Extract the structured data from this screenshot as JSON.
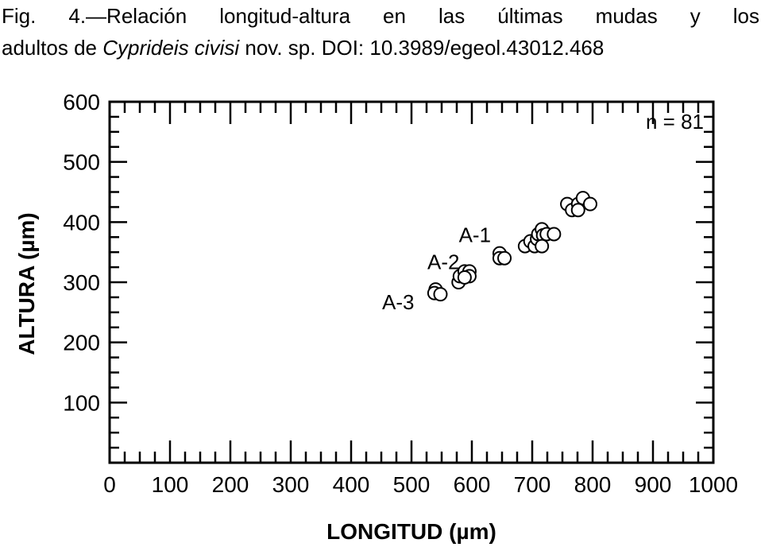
{
  "caption": {
    "line1": "Fig. 4.—Relación longitud-altura en las últimas mudas y los",
    "line2_prefix": "adultos de ",
    "line2_species": "Cyprideis civisi",
    "line2_suffix": " nov. sp. DOI: 10.3989/egeol.43012.468"
  },
  "chart_data": {
    "type": "scatter",
    "title": "",
    "xlabel": "LONGITUD (µm)",
    "ylabel": "ALTURA (µm)",
    "xlim": [
      0,
      1000
    ],
    "ylim": [
      0,
      600
    ],
    "x_ticks": [
      "0",
      "100",
      "200",
      "300",
      "400",
      "500",
      "600",
      "700",
      "800",
      "900",
      "1000"
    ],
    "y_ticks": [
      "100",
      "200",
      "300",
      "400",
      "500",
      "600"
    ],
    "grid": false,
    "marker": "open-circle",
    "annotation": "n = 81",
    "group_labels": [
      {
        "text": "A-1",
        "x": 605,
        "y": 380
      },
      {
        "text": "A-2",
        "x": 553,
        "y": 335
      },
      {
        "text": "A-3",
        "x": 478,
        "y": 268
      }
    ],
    "points": [
      {
        "x": 540,
        "y": 288
      },
      {
        "x": 538,
        "y": 282
      },
      {
        "x": 548,
        "y": 280
      },
      {
        "x": 578,
        "y": 300
      },
      {
        "x": 580,
        "y": 310
      },
      {
        "x": 588,
        "y": 318
      },
      {
        "x": 596,
        "y": 318
      },
      {
        "x": 596,
        "y": 310
      },
      {
        "x": 588,
        "y": 308
      },
      {
        "x": 646,
        "y": 348
      },
      {
        "x": 646,
        "y": 340
      },
      {
        "x": 654,
        "y": 340
      },
      {
        "x": 688,
        "y": 360
      },
      {
        "x": 697,
        "y": 368
      },
      {
        "x": 704,
        "y": 360
      },
      {
        "x": 708,
        "y": 372
      },
      {
        "x": 710,
        "y": 380
      },
      {
        "x": 716,
        "y": 388
      },
      {
        "x": 718,
        "y": 378
      },
      {
        "x": 716,
        "y": 360
      },
      {
        "x": 724,
        "y": 380
      },
      {
        "x": 736,
        "y": 380
      },
      {
        "x": 758,
        "y": 430
      },
      {
        "x": 766,
        "y": 420
      },
      {
        "x": 776,
        "y": 430
      },
      {
        "x": 776,
        "y": 420
      },
      {
        "x": 784,
        "y": 440
      },
      {
        "x": 796,
        "y": 430
      }
    ]
  }
}
